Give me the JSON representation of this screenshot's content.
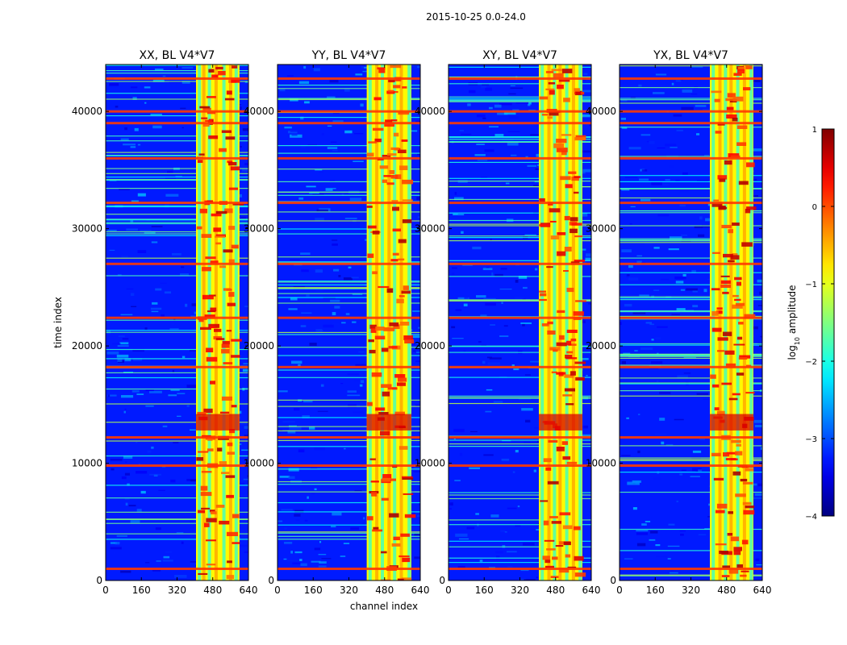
{
  "figure": {
    "suptitle": "2015-10-25 0.0-24.0"
  },
  "chart_data": [
    {
      "type": "heatmap",
      "title": "XX, BL V4*V7",
      "xlabel": "",
      "ylabel": "time index",
      "xlim": [
        0,
        640
      ],
      "ylim": [
        0,
        44000
      ],
      "xticks": [
        0,
        160,
        320,
        480,
        640
      ],
      "yticks": [
        0,
        10000,
        20000,
        30000,
        40000
      ],
      "xtick_labels": [
        "0",
        "160",
        "320",
        "480",
        "640"
      ],
      "ytick_labels": [
        "0",
        "10000",
        "20000",
        "30000",
        "40000"
      ],
      "rfi_band_channels": [
        405,
        600
      ],
      "rfi_stripe_channels": [
        420,
        440,
        465,
        495,
        530,
        560,
        585
      ],
      "strong_rows": [
        1000,
        9800,
        12200,
        18200,
        22400,
        27000,
        32200,
        36000,
        39000,
        40000,
        42800
      ]
    },
    {
      "type": "heatmap",
      "title": "YY, BL V4*V7",
      "xlabel": "channel index",
      "ylabel": "",
      "xlim": [
        0,
        640
      ],
      "ylim": [
        0,
        44000
      ],
      "xticks": [
        0,
        160,
        320,
        480,
        640
      ],
      "yticks": [
        0,
        10000,
        20000,
        30000,
        40000
      ],
      "xtick_labels": [
        "0",
        "160",
        "320",
        "480",
        "640"
      ],
      "ytick_labels": [
        "0",
        "10000",
        "20000",
        "30000",
        "40000"
      ],
      "rfi_band_channels": [
        400,
        600
      ],
      "rfi_stripe_channels": [
        415,
        445,
        470,
        500,
        525,
        555,
        590
      ],
      "strong_rows": [
        1000,
        9800,
        12200,
        18200,
        22400,
        27000,
        32200,
        36000,
        39000,
        40000,
        42800
      ]
    },
    {
      "type": "heatmap",
      "title": "XY, BL V4*V7",
      "xlabel": "",
      "ylabel": "",
      "xlim": [
        0,
        640
      ],
      "ylim": [
        0,
        44000
      ],
      "xticks": [
        0,
        160,
        320,
        480,
        640
      ],
      "yticks": [
        0,
        10000,
        20000,
        30000,
        40000
      ],
      "xtick_labels": [
        "0",
        "160",
        "320",
        "480",
        "640"
      ],
      "ytick_labels": [
        "0",
        "10000",
        "20000",
        "30000",
        "40000"
      ],
      "rfi_band_channels": [
        405,
        600
      ],
      "rfi_stripe_channels": [
        420,
        450,
        475,
        500,
        530,
        560,
        590
      ],
      "strong_rows": [
        1000,
        9800,
        12200,
        18200,
        22400,
        27000,
        32200,
        36000,
        39000,
        40000,
        42800
      ]
    },
    {
      "type": "heatmap",
      "title": "YX, BL V4*V7",
      "xlabel": "",
      "ylabel": "",
      "xlim": [
        0,
        640
      ],
      "ylim": [
        0,
        44000
      ],
      "xticks": [
        0,
        160,
        320,
        480,
        640
      ],
      "yticks": [
        0,
        10000,
        20000,
        30000,
        40000
      ],
      "xtick_labels": [
        "0",
        "160",
        "320",
        "480",
        "640"
      ],
      "ytick_labels": [
        "0",
        "10000",
        "20000",
        "30000",
        "40000"
      ],
      "rfi_band_channels": [
        405,
        600
      ],
      "rfi_stripe_channels": [
        420,
        450,
        475,
        500,
        530,
        560,
        590
      ],
      "strong_rows": [
        1000,
        9800,
        12200,
        18200,
        22400,
        27000,
        32200,
        36000,
        39000,
        40000,
        42800
      ]
    }
  ],
  "colorbar": {
    "label_prefix": "log",
    "label_sub": "10",
    "label_suffix": " amplitude",
    "vmin": -4,
    "vmax": 1,
    "ticks": [
      1,
      0,
      -1,
      -2,
      -3,
      -4
    ],
    "tick_labels": [
      "1",
      "0",
      "−1",
      "−2",
      "−3",
      "−4"
    ],
    "colormap": "jet"
  }
}
